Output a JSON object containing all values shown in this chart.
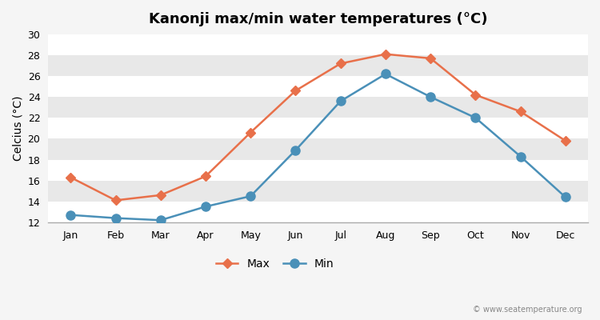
{
  "title": "Kanonji max/min water temperatures (°C)",
  "ylabel": "Celcius (°C)",
  "months": [
    "Jan",
    "Feb",
    "Mar",
    "Apr",
    "May",
    "Jun",
    "Jul",
    "Aug",
    "Sep",
    "Oct",
    "Nov",
    "Dec"
  ],
  "max_temps": [
    16.3,
    14.1,
    14.6,
    16.4,
    20.6,
    24.6,
    27.2,
    28.1,
    27.7,
    24.2,
    22.6,
    19.8
  ],
  "min_temps": [
    12.7,
    12.4,
    12.2,
    13.5,
    14.5,
    18.9,
    23.6,
    26.2,
    24.0,
    22.0,
    18.3,
    14.4
  ],
  "max_color": "#e8704a",
  "min_color": "#4a90b8",
  "ylim": [
    12,
    30
  ],
  "yticks": [
    12,
    14,
    16,
    18,
    20,
    22,
    24,
    26,
    28,
    30
  ],
  "band_colors": [
    "#ffffff",
    "#e8e8e8"
  ],
  "outer_bg": "#f5f5f5",
  "grid_line_color": "#cccccc",
  "watermark": "© www.seatemperature.org",
  "legend_labels": [
    "Max",
    "Min"
  ],
  "max_marker": "D",
  "min_marker": "o",
  "max_marker_size": 6,
  "min_marker_size": 8,
  "line_width": 1.8,
  "title_fontsize": 13,
  "axis_fontsize": 9,
  "ylabel_fontsize": 10
}
